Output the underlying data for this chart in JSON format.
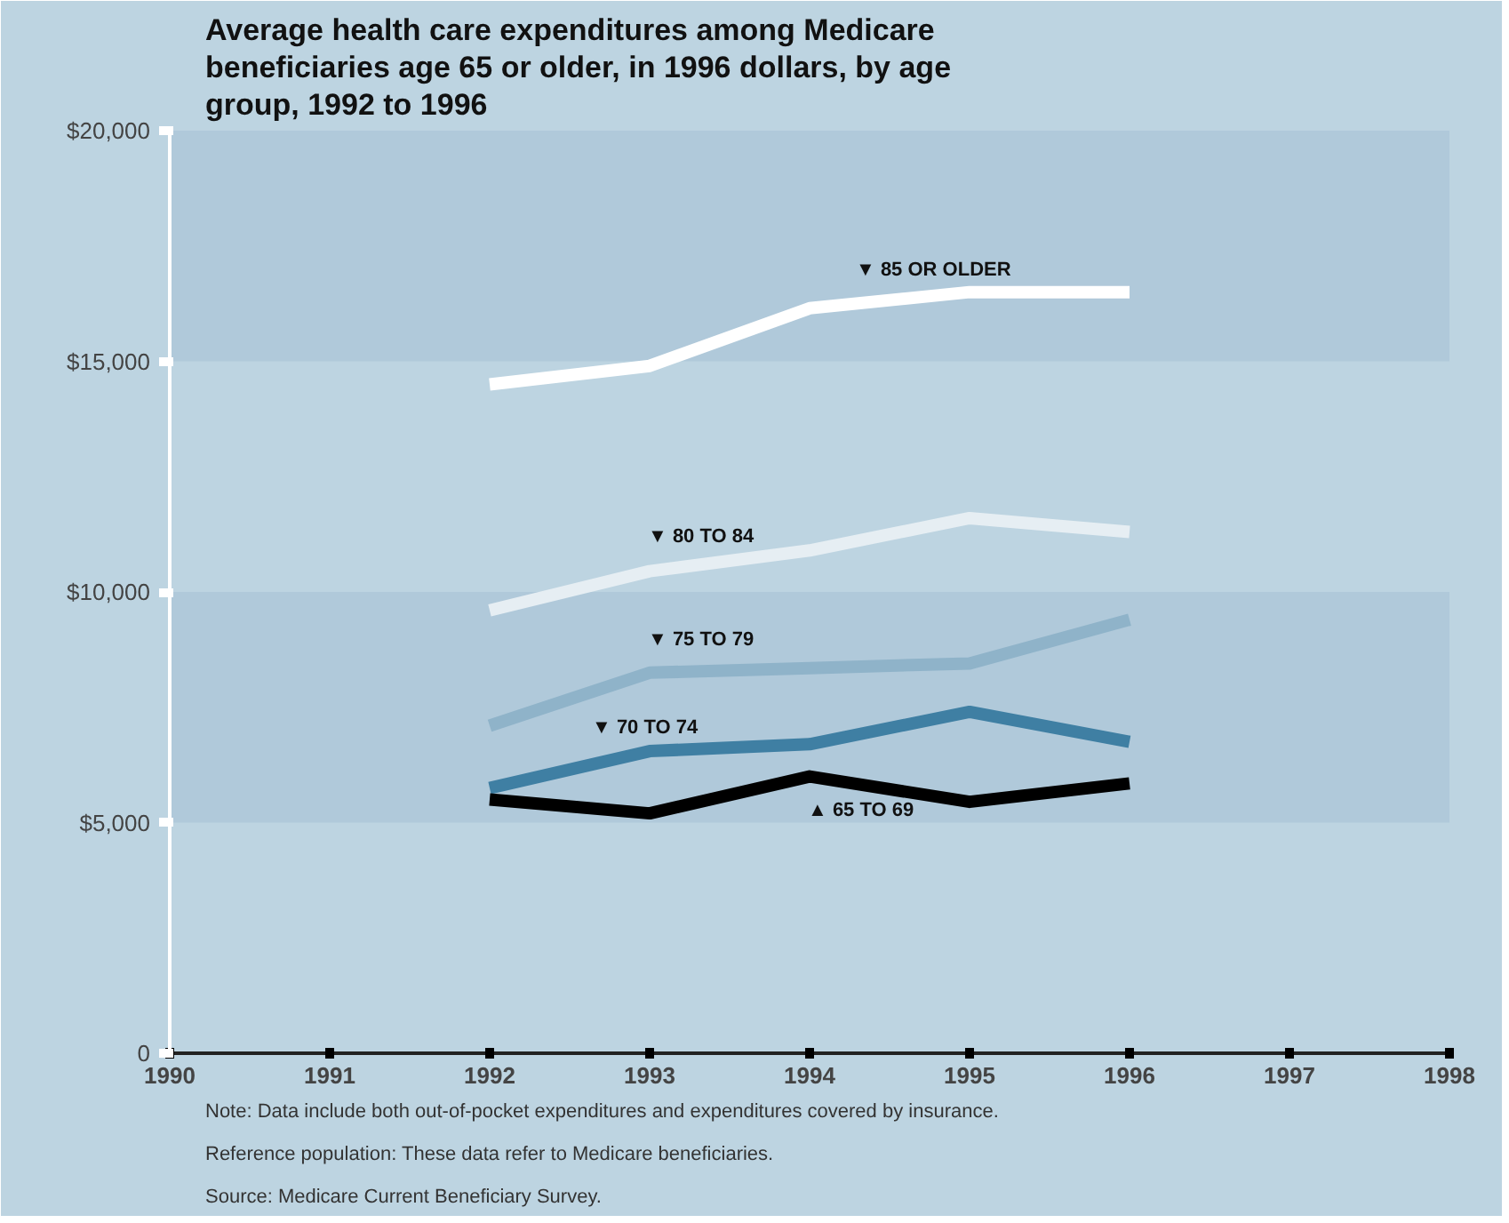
{
  "chart_data": {
    "type": "line",
    "title": "Average health care expenditures among Medicare beneficiaries age 65 or older, in 1996 dollars, by age group, 1992 to 1996",
    "x": [
      1992,
      1993,
      1994,
      1995,
      1996
    ],
    "series": [
      {
        "name": "▼ 85 OR OLDER",
        "color": "#ffffff",
        "values": [
          14500,
          14900,
          16150,
          16500,
          16500
        ]
      },
      {
        "name": "▼ 80 TO 84",
        "color": "#e6eef3",
        "values": [
          9600,
          10450,
          10900,
          11600,
          11300
        ]
      },
      {
        "name": "▼ 75 TO 79",
        "color": "#8fb3c9",
        "values": [
          7100,
          8250,
          8350,
          8450,
          9400
        ]
      },
      {
        "name": "▼ 70 TO 74",
        "color": "#3f7fa3",
        "values": [
          5750,
          6550,
          6700,
          7400,
          6750
        ]
      },
      {
        "name": "▲ 65 TO 69",
        "color": "#000000",
        "values": [
          5500,
          5200,
          6000,
          5450,
          5850
        ]
      }
    ],
    "xlim": [
      1990,
      1998
    ],
    "xticks": [
      1990,
      1991,
      1992,
      1993,
      1994,
      1995,
      1996,
      1997,
      1998
    ],
    "ylim": [
      0,
      20000
    ],
    "yticks": [
      {
        "value": 0,
        "label": "0"
      },
      {
        "value": 5000,
        "label": "$5,000"
      },
      {
        "value": 10000,
        "label": "$10,000"
      },
      {
        "value": 15000,
        "label": "$15,000"
      },
      {
        "value": 20000,
        "label": "$20,000"
      }
    ],
    "bands": [
      {
        "axis": "y",
        "from": 5000,
        "to": 10000,
        "color": "#b0c9da"
      },
      {
        "axis": "y",
        "from": 15000,
        "to": 20000,
        "color": "#b0c9da"
      }
    ],
    "line_style": "solid",
    "annotations": [
      "Note: Data include both out-of-pocket expenditures and expenditures covered by insurance.",
      "Reference population: These data refer to Medicare beneficiaries.",
      "Source: Medicare Current Beneficiary Survey."
    ]
  }
}
